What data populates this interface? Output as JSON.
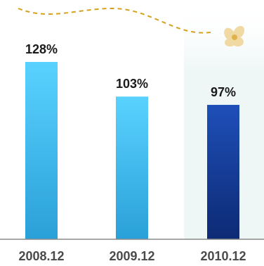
{
  "chart_data": {
    "type": "bar",
    "categories": [
      "2008.12",
      "2009.12",
      "2010.12"
    ],
    "values": [
      128,
      103,
      97
    ],
    "value_labels": [
      "128%",
      "103%",
      "97%"
    ],
    "unit": "%",
    "title": "",
    "xlabel": "",
    "ylabel": "",
    "ylim": [
      0,
      140
    ],
    "grid": false,
    "legend": "none",
    "highlight_index": 2,
    "colors": {
      "bar_top": "#5ad2ff",
      "bar_bottom": "#2aa0d8",
      "highlight_top": "#1e4fb8",
      "highlight_bottom": "#0d2a74",
      "highlight_panel": "#eef6f6",
      "baseline": "#8a8a8a",
      "dashed_line": "#d6a21e",
      "decoration": "#f0d9a2"
    }
  }
}
